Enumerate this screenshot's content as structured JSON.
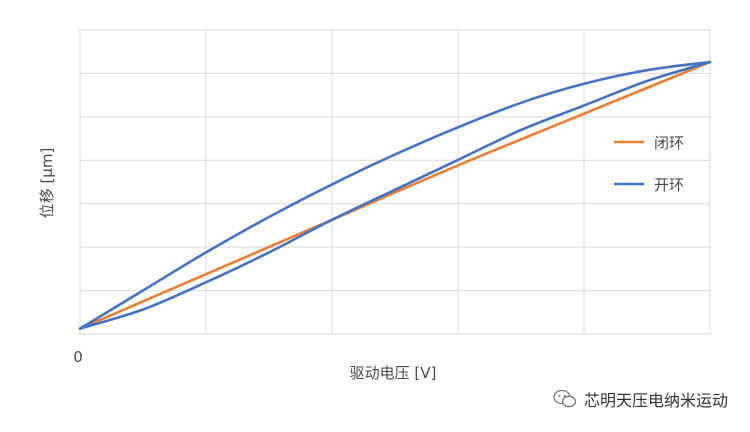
{
  "chart_data": {
    "type": "line",
    "xlabel": "驱动电压 [V]",
    "ylabel": "位移 [μm]",
    "x_ticks": [
      "0"
    ],
    "xlim": [
      0,
      1
    ],
    "ylim": [
      0,
      1
    ],
    "grid": true,
    "legend_position": "right",
    "series": [
      {
        "name": "闭环",
        "color": "#ED7D31",
        "x": [
          0,
          0.2,
          0.4,
          0.6,
          0.8,
          1.0
        ],
        "y": [
          0.02,
          0.22,
          0.42,
          0.62,
          0.81,
          1.0
        ]
      },
      {
        "name": "开环",
        "color": "#4472C4",
        "branches": [
          {
            "x": [
              0,
              0.1,
              0.2,
              0.3,
              0.4,
              0.5,
              0.6,
              0.7,
              0.8,
              0.9,
              1.0
            ],
            "y": [
              0.02,
              0.16,
              0.3,
              0.43,
              0.55,
              0.66,
              0.76,
              0.85,
              0.92,
              0.97,
              1.0
            ]
          },
          {
            "x": [
              0,
              0.1,
              0.2,
              0.3,
              0.4,
              0.5,
              0.6,
              0.7,
              0.8,
              0.9,
              1.0
            ],
            "y": [
              0.02,
              0.09,
              0.19,
              0.3,
              0.42,
              0.53,
              0.64,
              0.75,
              0.84,
              0.93,
              1.0
            ]
          }
        ]
      }
    ]
  },
  "watermark": {
    "text": "芯明天压电纳米运动",
    "icon": "wechat-icon"
  }
}
